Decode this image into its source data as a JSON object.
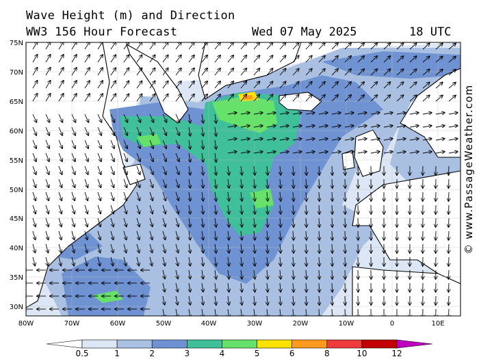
{
  "header": {
    "line1": "Wave Height (m) and Direction",
    "line2": "WW3 156 Hour Forecast",
    "date": "Wed 07 May 2025",
    "time": "18 UTC"
  },
  "watermark": "© www.PassageWeather.com",
  "map": {
    "lon_range": [
      -80,
      15
    ],
    "lat_range": [
      28,
      75
    ],
    "lat_ticks": [
      "75N",
      "70N",
      "65N",
      "60N",
      "55N",
      "50N",
      "45N",
      "40N",
      "35N",
      "30N"
    ],
    "lon_ticks": [
      "80W",
      "70W",
      "60W",
      "50W",
      "40W",
      "30W",
      "20W",
      "10W",
      "0",
      "10E"
    ],
    "colors": {
      "land": "#ffffff",
      "sea_calm": "#ffffff",
      "band_0_5_1": "#dde6f4",
      "band_1_2": "#a9c0e3",
      "band_2_3": "#6f93d2",
      "band_3_4": "#3fbf9a",
      "band_4_5": "#66e26a",
      "band_5_6": "#ffe200",
      "band_6_8": "#ff9a1e"
    }
  },
  "colorbar": {
    "levels": [
      "0.5",
      "1",
      "2",
      "3",
      "4",
      "5",
      "6",
      "8",
      "10",
      "12"
    ],
    "colors": [
      "#ffffff",
      "#dde6f4",
      "#a9c0e3",
      "#6f93d2",
      "#3fbf9a",
      "#66e26a",
      "#ffe200",
      "#ff9a1e",
      "#ee3b3b",
      "#c20000",
      "#c000c0"
    ]
  }
}
